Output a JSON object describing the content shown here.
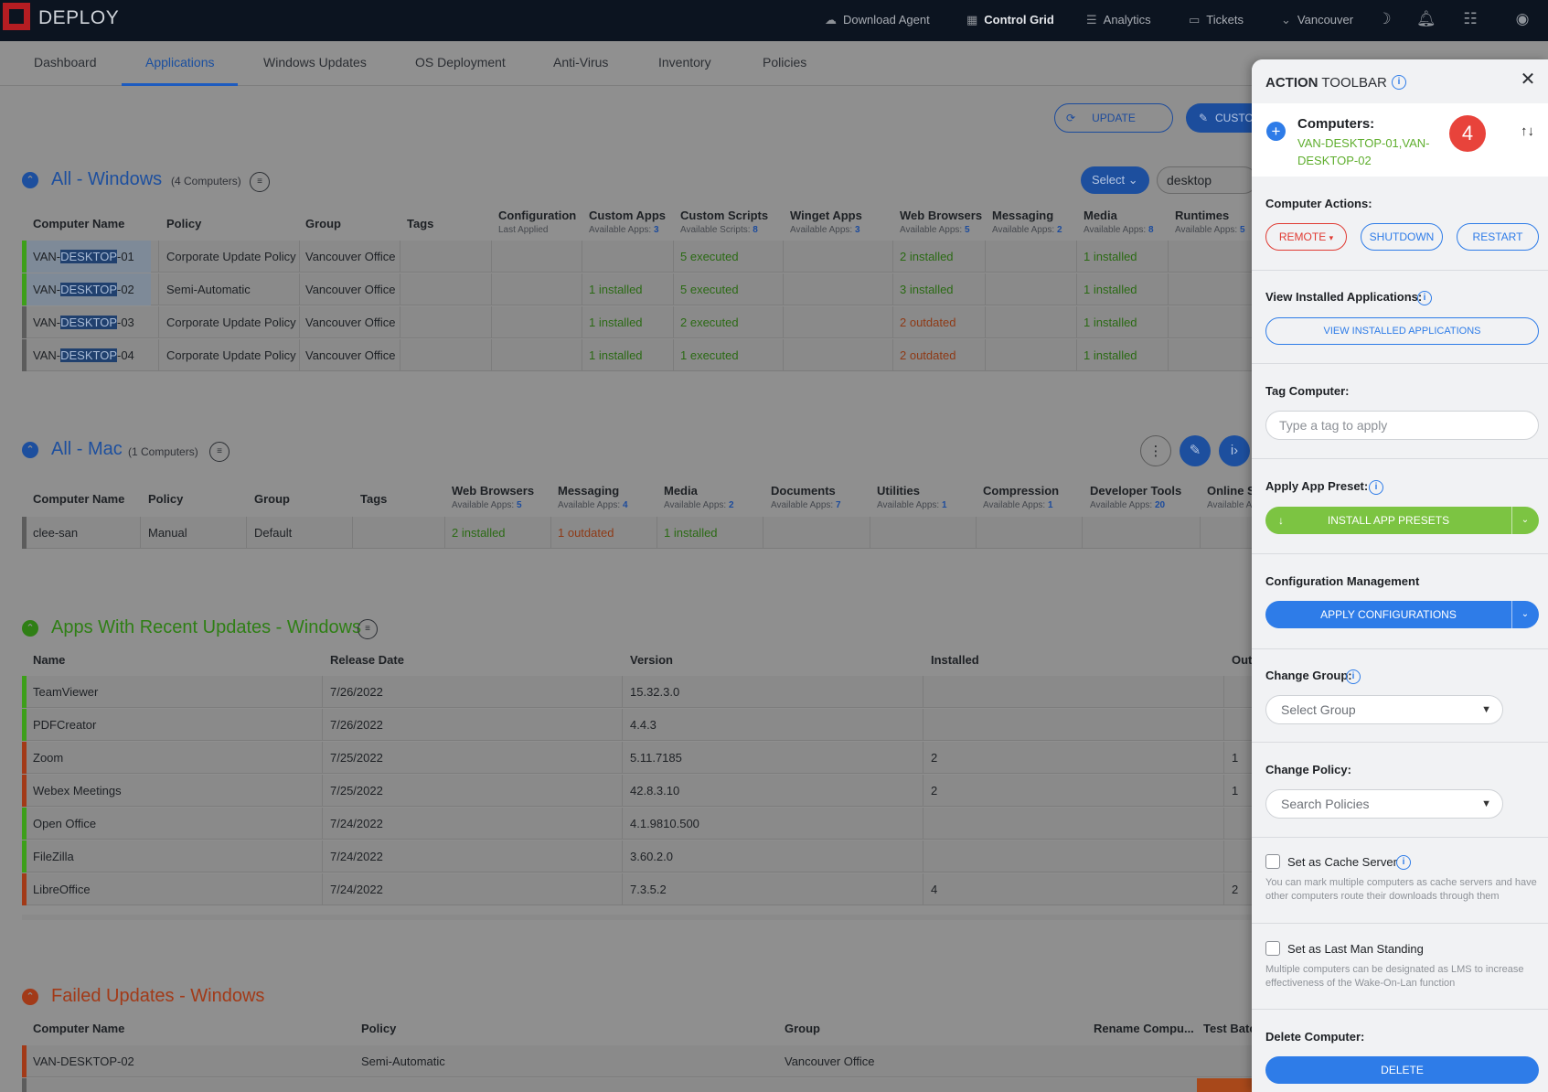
{
  "topbar": {
    "brand": "DEPLOY",
    "nav": [
      {
        "label": "Download Agent",
        "icon": "cloud-download-icon"
      },
      {
        "label": "Control Grid",
        "icon": "grid-icon"
      },
      {
        "label": "Analytics",
        "icon": "list-icon"
      },
      {
        "label": "Tickets",
        "icon": "ticket-icon"
      },
      {
        "label": "Vancouver",
        "icon": "chevron-down-icon"
      }
    ]
  },
  "tabs": [
    "Dashboard",
    "Applications",
    "Windows Updates",
    "OS Deployment",
    "Anti-Virus",
    "Inventory",
    "Policies"
  ],
  "buttons": {
    "update": "UPDATE",
    "custom": "CUSTO",
    "select": "Select"
  },
  "search": {
    "value": "desktop"
  },
  "win": {
    "title": "All - Windows",
    "count": "(4 Computers)",
    "headers": [
      {
        "label": "Computer Name"
      },
      {
        "label": "Policy"
      },
      {
        "label": "Group"
      },
      {
        "label": "Tags"
      },
      {
        "label": "Configuration",
        "sub": "Last Applied",
        "n": ""
      },
      {
        "label": "Custom Apps",
        "sub": "Available Apps: ",
        "n": "3"
      },
      {
        "label": "Custom Scripts",
        "sub": "Available Scripts: ",
        "n": "8"
      },
      {
        "label": "Winget Apps",
        "sub": "Available Apps: ",
        "n": "3"
      },
      {
        "label": "Web Browsers",
        "sub": "Available Apps: ",
        "n": "5"
      },
      {
        "label": "Messaging",
        "sub": "Available Apps: ",
        "n": "2"
      },
      {
        "label": "Media",
        "sub": "Available Apps: ",
        "n": "8"
      },
      {
        "label": "Runtimes",
        "sub": "Available Apps: ",
        "n": "5"
      }
    ],
    "rows": [
      {
        "pre": "VAN-",
        "hl": "DESKTOP",
        "post": "-01",
        "policy": "Corporate Update Policy",
        "group": "Vancouver Office",
        "custom_apps": "",
        "scripts": "5 executed",
        "browsers": "2 installed",
        "browsers_status": "ok",
        "media": "1 installed"
      },
      {
        "pre": "VAN-",
        "hl": "DESKTOP",
        "post": "-02",
        "policy": "Semi-Automatic",
        "group": "Vancouver Office",
        "custom_apps": "1 installed",
        "scripts": "5 executed",
        "browsers": "3 installed",
        "browsers_status": "ok",
        "media": "1 installed"
      },
      {
        "pre": "VAN-",
        "hl": "DESKTOP",
        "post": "-03",
        "policy": "Corporate Update Policy",
        "group": "Vancouver Office",
        "custom_apps": "1 installed",
        "scripts": "2 executed",
        "browsers": "2 outdated",
        "browsers_status": "warn",
        "media": "1 installed"
      },
      {
        "pre": "VAN-",
        "hl": "DESKTOP",
        "post": "-04",
        "policy": "Corporate Update Policy",
        "group": "Vancouver Office",
        "custom_apps": "1 installed",
        "scripts": "1 executed",
        "browsers": "2 outdated",
        "browsers_status": "warn",
        "media": "1 installed"
      }
    ]
  },
  "mac": {
    "title": "All - Mac",
    "count": "(1 Computers)",
    "headers": [
      {
        "label": "Computer Name"
      },
      {
        "label": "Policy"
      },
      {
        "label": "Group"
      },
      {
        "label": "Tags"
      },
      {
        "label": "Web Browsers",
        "sub": "Available Apps: ",
        "n": "5"
      },
      {
        "label": "Messaging",
        "sub": "Available Apps: ",
        "n": "4"
      },
      {
        "label": "Media",
        "sub": "Available Apps: ",
        "n": "2"
      },
      {
        "label": "Documents",
        "sub": "Available Apps: ",
        "n": "7"
      },
      {
        "label": "Utilities",
        "sub": "Available Apps: ",
        "n": "1"
      },
      {
        "label": "Compression",
        "sub": "Available Apps: ",
        "n": "1"
      },
      {
        "label": "Developer Tools",
        "sub": "Available Apps: ",
        "n": "20"
      },
      {
        "label": "Online S",
        "sub": "Available A",
        "n": ""
      }
    ],
    "row": {
      "name": "clee-san",
      "policy": "Manual",
      "group": "Default",
      "browsers": "2 installed",
      "messaging": "1 outdated",
      "media": "1 installed"
    }
  },
  "recent": {
    "title": "Apps With Recent Updates - Windows",
    "headers": [
      "Name",
      "Release Date",
      "Version",
      "Installed",
      "Out"
    ],
    "rows": [
      {
        "name": "TeamViewer",
        "date": "7/26/2022",
        "version": "15.32.3.0",
        "installed": "",
        "out": "",
        "status": "ok"
      },
      {
        "name": "PDFCreator",
        "date": "7/26/2022",
        "version": "4.4.3",
        "installed": "",
        "out": "",
        "status": "ok"
      },
      {
        "name": "Zoom",
        "date": "7/25/2022",
        "version": "5.11.7185",
        "installed": "2",
        "out": "1",
        "status": "warn"
      },
      {
        "name": "Webex Meetings",
        "date": "7/25/2022",
        "version": "42.8.3.10",
        "installed": "2",
        "out": "1",
        "status": "warn"
      },
      {
        "name": "Open Office",
        "date": "7/24/2022",
        "version": "4.1.9810.500",
        "installed": "",
        "out": "",
        "status": "ok"
      },
      {
        "name": "FileZilla",
        "date": "7/24/2022",
        "version": "3.60.2.0",
        "installed": "",
        "out": "",
        "status": "ok"
      },
      {
        "name": "LibreOffice",
        "date": "7/24/2022",
        "version": "7.3.5.2",
        "installed": "4",
        "out": "2",
        "status": "warn"
      }
    ]
  },
  "failed": {
    "title": "Failed Updates - Windows",
    "headers": [
      "Computer Name",
      "Policy",
      "Group",
      "Rename Compu...",
      "Test Batc"
    ],
    "rows": [
      {
        "name": "VAN-DESKTOP-02",
        "policy": "Semi-Automatic",
        "group": "Vancouver Office"
      }
    ]
  },
  "panel": {
    "title_bold": "ACTION",
    "title_rest": " TOOLBAR",
    "computers_label": "Computers:",
    "computers_value": "VAN-DESKTOP-01,VAN-DESKTOP-02",
    "computer_count": "4",
    "computer_actions_label": "Computer Actions:",
    "remote": "REMOTE",
    "shutdown": "SHUTDOWN",
    "restart": "RESTART",
    "view_installed_label": "View Installed Applications:",
    "view_installed_button": "VIEW INSTALLED APPLICATIONS",
    "tag_label": "Tag Computer:",
    "tag_placeholder": "Type a tag to apply",
    "preset_label": "Apply App Preset:",
    "preset_button": "INSTALL APP PRESETS",
    "config_label": "Configuration Management",
    "config_button": "APPLY CONFIGURATIONS",
    "group_label": "Change Group:",
    "group_placeholder": "Select Group",
    "policy_label": "Change Policy:",
    "policy_placeholder": "Search Policies",
    "cache_label": "Set as Cache Server",
    "cache_help": "You can mark multiple computers as cache servers and have other computers route their downloads through them",
    "lms_label": "Set as Last Man Standing",
    "lms_help": "Multiple computers can be designated as LMS to increase effectiveness of the Wake-On-Lan function",
    "delete_label": "Delete Computer:",
    "delete_button": "DELETE"
  },
  "colors": {
    "ok": "#2b6a14",
    "warn": "#8e3a16",
    "accent": "#2e7ce8",
    "danger": "#e03a32",
    "success": "#7cc442"
  }
}
